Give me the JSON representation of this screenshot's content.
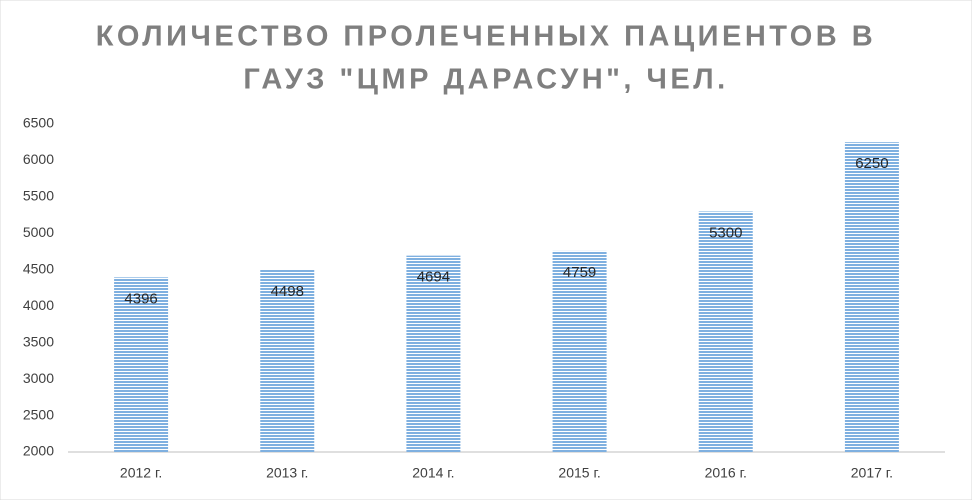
{
  "chart_data": {
    "type": "bar",
    "title": [
      "КОЛИЧЕСТВО ПРОЛЕЧЕННЫХ ПАЦИЕНТОВ В",
      "ГАУЗ \"ЦМР ДАРАСУН\", ЧЕЛ."
    ],
    "categories": [
      "2012 г.",
      "2013 г.",
      "2014 г.",
      "2015 г.",
      "2016 г.",
      "2017 г."
    ],
    "values": [
      4396,
      4498,
      4694,
      4759,
      5300,
      6250
    ],
    "color": "#7fb0e0",
    "ylim": [
      2000,
      6500
    ],
    "yticks": [
      2000,
      2500,
      3000,
      3500,
      4000,
      4500,
      5000,
      5500,
      6000,
      6500
    ],
    "grid": false
  }
}
